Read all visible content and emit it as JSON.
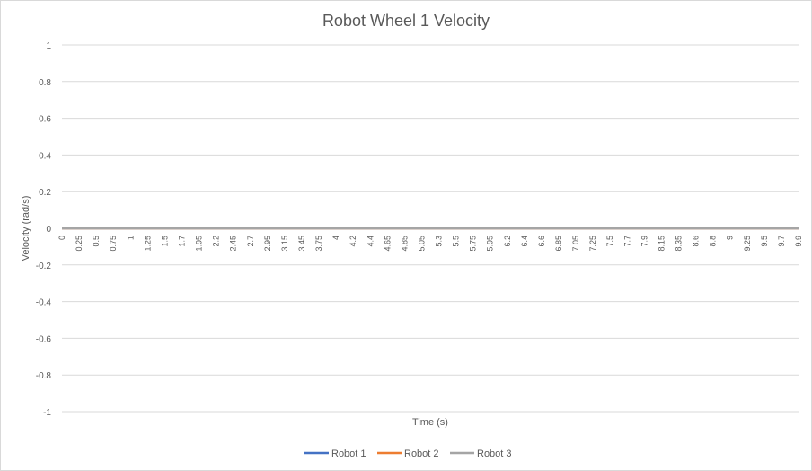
{
  "chart_data": {
    "type": "line",
    "title": "Robot Wheel 1 Velocity",
    "xlabel": "Time (s)",
    "ylabel": "Velocity (rad/s)",
    "ylim": [
      -1,
      1
    ],
    "yticks": [
      "1",
      "0.8",
      "0.6",
      "0.4",
      "0.2",
      "0",
      "-0.2",
      "-0.4",
      "-0.6",
      "-0.8",
      "-1"
    ],
    "x": [
      "0",
      "0.25",
      "0.5",
      "0.75",
      "1",
      "1.25",
      "1.5",
      "1.7",
      "1.95",
      "2.2",
      "2.45",
      "2.7",
      "2.95",
      "3.15",
      "3.45",
      "3.75",
      "4",
      "4.2",
      "4.4",
      "4.65",
      "4.85",
      "5.05",
      "5.3",
      "5.5",
      "5.75",
      "5.95",
      "6.2",
      "6.4",
      "6.6",
      "6.85",
      "7.05",
      "7.25",
      "7.5",
      "7.7",
      "7.9",
      "8.15",
      "8.35",
      "8.6",
      "8.8",
      "9",
      "9.25",
      "9.5",
      "9.7",
      "9.9"
    ],
    "grid": true,
    "legend_position": "bottom",
    "series": [
      {
        "name": "Robot 1",
        "color": "#4472C4",
        "value": 0
      },
      {
        "name": "Robot 2",
        "color": "#ED7D31",
        "value": 0
      },
      {
        "name": "Robot 3",
        "color": "#A5A5A5",
        "value": 0
      }
    ]
  }
}
